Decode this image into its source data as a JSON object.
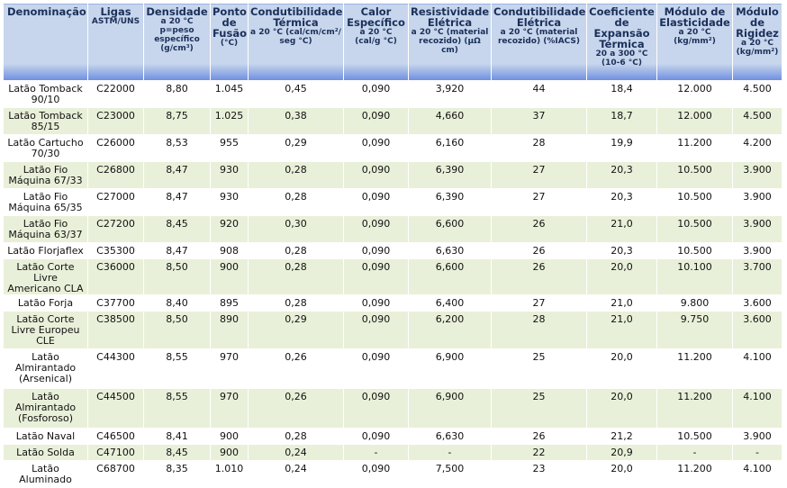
{
  "headers": [
    {
      "title": "Denominação",
      "sub": ""
    },
    {
      "title": "Ligas",
      "sub": "ASTM/UNS"
    },
    {
      "title": "Densidade",
      "sub": "a 20 °C p=peso específico (g/cm³)"
    },
    {
      "title": "Ponto de Fusão",
      "sub": "(°C)"
    },
    {
      "title": "Condutibilidade Térmica",
      "sub": "a 20 °C (cal/cm/cm²/ seg °C)"
    },
    {
      "title": "Calor Específico",
      "sub": "a 20 °C (cal/g °C)"
    },
    {
      "title": "Resistividade Elétrica",
      "sub": "a 20 °C (material recozido) (µΩ cm)"
    },
    {
      "title": "Condutibilidade Elétrica",
      "sub": "a 20 °C (material recozido) (%IACS)"
    },
    {
      "title": "Coeficiente de Expansão Térmica",
      "sub": "20 a 300 °C (10-6 °C)"
    },
    {
      "title": "Módulo de Elasticidade",
      "sub": "a 20 °C (kg/mm²)"
    },
    {
      "title": "Módulo de Rigidez",
      "sub": "a 20 °C (kg/mm²)"
    }
  ],
  "rows": [
    [
      "Latão Tomback 90/10",
      "C22000",
      "8,80",
      "1.045",
      "0,45",
      "0,090",
      "3,920",
      "44",
      "18,4",
      "12.000",
      "4.500"
    ],
    [
      "Latão Tomback 85/15",
      "C23000",
      "8,75",
      "1.025",
      "0,38",
      "0,090",
      "4,660",
      "37",
      "18,7",
      "12.000",
      "4.500"
    ],
    [
      "Latão Cartucho 70/30",
      "C26000",
      "8,53",
      "955",
      "0,29",
      "0,090",
      "6,160",
      "28",
      "19,9",
      "11.200",
      "4.200"
    ],
    [
      "Latão Fio Máquina 67/33",
      "C26800",
      "8,47",
      "930",
      "0,28",
      "0,090",
      "6,390",
      "27",
      "20,3",
      "10.500",
      "3.900"
    ],
    [
      "Latão Fio Máquina 65/35",
      "C27000",
      "8,47",
      "930",
      "0,28",
      "0,090",
      "6,390",
      "27",
      "20,3",
      "10.500",
      "3.900"
    ],
    [
      "Latão Fio Máquina 63/37",
      "C27200",
      "8,45",
      "920",
      "0,30",
      "0,090",
      "6,600",
      "26",
      "21,0",
      "10.500",
      "3.900"
    ],
    [
      "Latão Florjaflex",
      "C35300",
      "8,47",
      "908",
      "0,28",
      "0,090",
      "6,630",
      "26",
      "20,3",
      "10.500",
      "3.900"
    ],
    [
      "Latão Corte Livre Americano CLA",
      "C36000",
      "8,50",
      "900",
      "0,28",
      "0,090",
      "6,600",
      "26",
      "20,0",
      "10.100",
      "3.700"
    ],
    [
      "Latão Forja",
      "C37700",
      "8,40",
      "895",
      "0,28",
      "0,090",
      "6,400",
      "27",
      "21,0",
      "9.800",
      "3.600"
    ],
    [
      "Latão Corte Livre Europeu CLE",
      "C38500",
      "8,50",
      "890",
      "0,29",
      "0,090",
      "6,200",
      "28",
      "21,0",
      "9.750",
      "3.600"
    ],
    [
      "Latão Almirantado (Arsenical)",
      "C44300",
      "8,55",
      "970",
      "0,26",
      "0,090",
      "6,900",
      "25",
      "20,0",
      "11.200",
      "4.100"
    ],
    [
      "Latão Almirantado (Fosforoso)",
      "C44500",
      "8,55",
      "970",
      "0,26",
      "0,090",
      "6,900",
      "25",
      "20,0",
      "11.200",
      "4.100"
    ],
    [
      "Latão Naval",
      "C46500",
      "8,41",
      "900",
      "0,28",
      "0,090",
      "6,630",
      "26",
      "21,2",
      "10.500",
      "3.900"
    ],
    [
      "Latão Solda",
      "C47100",
      "8,45",
      "900",
      "0,24",
      "-",
      "-",
      "22",
      "20,9",
      "-",
      "-"
    ],
    [
      "Latão Aluminado",
      "C68700",
      "8,35",
      "1.010",
      "0,24",
      "0,090",
      "7,500",
      "23",
      "20,0",
      "11.200",
      "4.100"
    ]
  ]
}
